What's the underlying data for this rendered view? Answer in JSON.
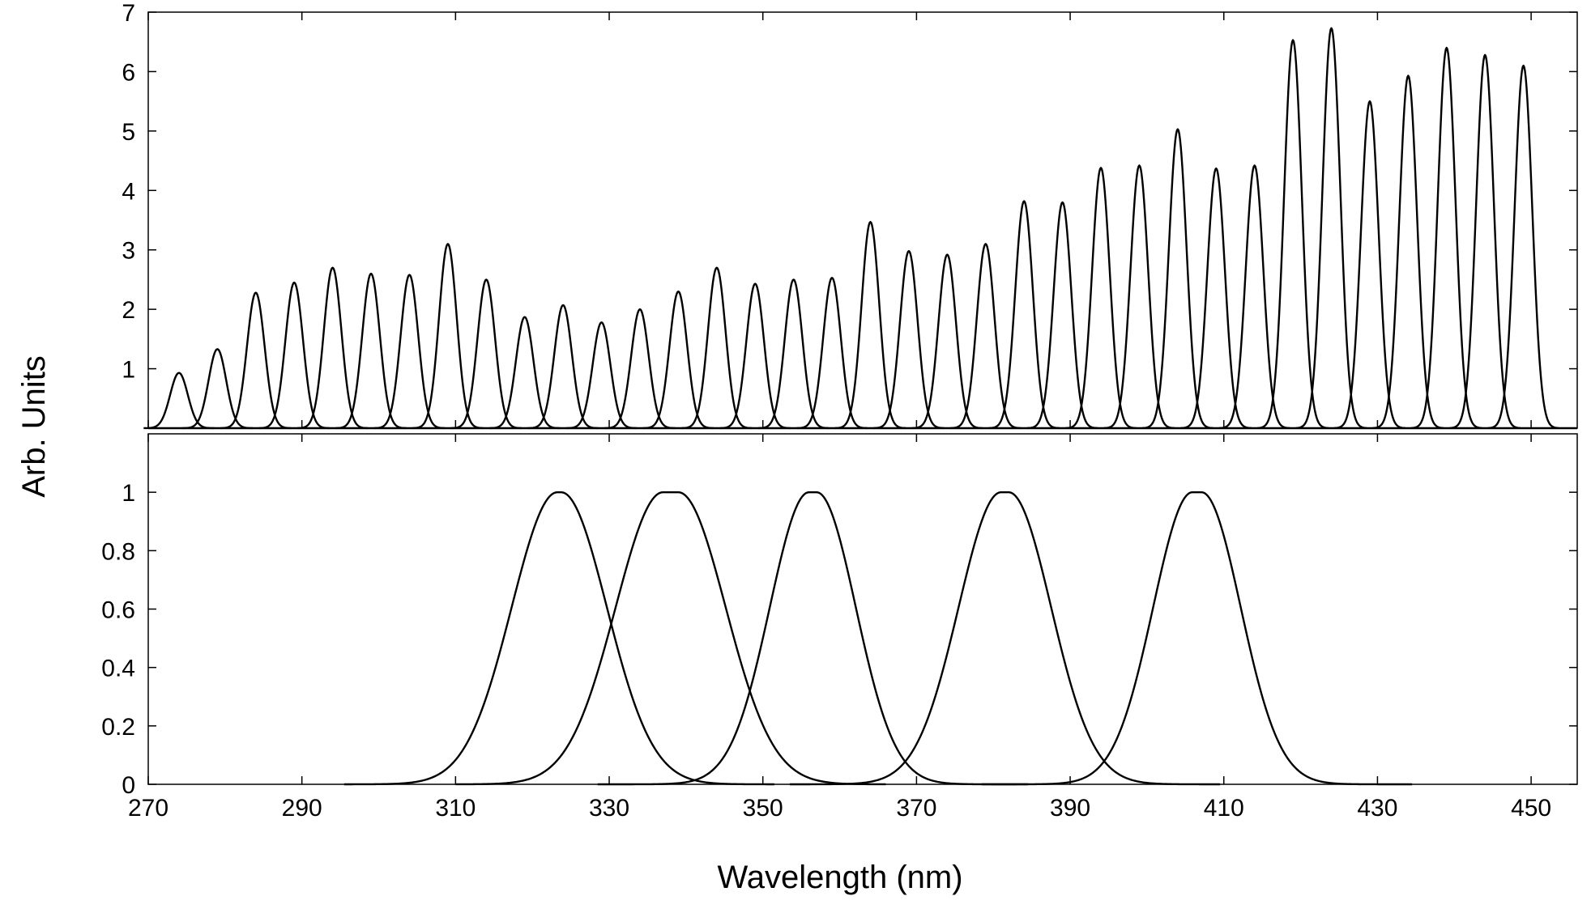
{
  "chart_data": [
    {
      "type": "line",
      "panel": "top",
      "title": "",
      "xlabel": "Wavelength (nm)",
      "ylabel": "Arb. Units",
      "xlim": [
        270,
        456
      ],
      "ylim": [
        0,
        7
      ],
      "xticks": [
        270,
        290,
        310,
        330,
        350,
        370,
        390,
        410,
        430,
        450
      ],
      "yticks": [
        1,
        2,
        3,
        4,
        5,
        6,
        7
      ],
      "ytick_labels": [
        "1",
        "2",
        "3",
        "4",
        "5",
        "6",
        "7"
      ],
      "grid": false,
      "peak_fwhm_nm": 2.7,
      "series": [
        {
          "center": 274,
          "peak": 0.93
        },
        {
          "center": 279,
          "peak": 1.33
        },
        {
          "center": 284,
          "peak": 2.28
        },
        {
          "center": 289,
          "peak": 2.45
        },
        {
          "center": 294,
          "peak": 2.7
        },
        {
          "center": 299,
          "peak": 2.6
        },
        {
          "center": 304,
          "peak": 2.58
        },
        {
          "center": 309,
          "peak": 3.1
        },
        {
          "center": 314,
          "peak": 2.5
        },
        {
          "center": 319,
          "peak": 1.87
        },
        {
          "center": 324,
          "peak": 2.07
        },
        {
          "center": 329,
          "peak": 1.78
        },
        {
          "center": 334,
          "peak": 2.0
        },
        {
          "center": 339,
          "peak": 2.3
        },
        {
          "center": 344,
          "peak": 2.7
        },
        {
          "center": 349,
          "peak": 2.43
        },
        {
          "center": 354,
          "peak": 2.5
        },
        {
          "center": 359,
          "peak": 2.53
        },
        {
          "center": 364,
          "peak": 3.47
        },
        {
          "center": 369,
          "peak": 2.98
        },
        {
          "center": 374,
          "peak": 2.92
        },
        {
          "center": 379,
          "peak": 3.1
        },
        {
          "center": 384,
          "peak": 3.82
        },
        {
          "center": 389,
          "peak": 3.8
        },
        {
          "center": 394,
          "peak": 4.38
        },
        {
          "center": 399,
          "peak": 4.42
        },
        {
          "center": 404,
          "peak": 5.03
        },
        {
          "center": 409,
          "peak": 4.37
        },
        {
          "center": 414,
          "peak": 4.42
        },
        {
          "center": 419,
          "peak": 6.53
        },
        {
          "center": 424,
          "peak": 6.73
        },
        {
          "center": 429,
          "peak": 5.5
        },
        {
          "center": 434,
          "peak": 5.93
        },
        {
          "center": 439,
          "peak": 6.4
        },
        {
          "center": 444,
          "peak": 6.28
        },
        {
          "center": 449,
          "peak": 6.1
        }
      ]
    },
    {
      "type": "line",
      "panel": "bottom",
      "title": "",
      "xlabel": "Wavelength (nm)",
      "ylabel": "Arb. Units",
      "xlim": [
        270,
        456
      ],
      "ylim": [
        0,
        1.2
      ],
      "xticks": [
        270,
        290,
        310,
        330,
        350,
        370,
        390,
        410,
        430,
        450
      ],
      "xtick_labels": [
        "270",
        "290",
        "310",
        "330",
        "350",
        "370",
        "390",
        "410",
        "430",
        "450"
      ],
      "yticks": [
        0,
        0.2,
        0.4,
        0.6,
        0.8,
        1
      ],
      "ytick_labels": [
        "0",
        "0.2",
        "0.4",
        "0.6",
        "0.8",
        "1"
      ],
      "grid": false,
      "series": [
        {
          "center": 323.5,
          "peak": 1.0,
          "fwhm_nm": 14,
          "flat_top_nm": 0.5
        },
        {
          "center": 338,
          "peak": 1.0,
          "fwhm_nm": 14.5,
          "flat_top_nm": 2
        },
        {
          "center": 356.5,
          "peak": 1.0,
          "fwhm_nm": 12,
          "flat_top_nm": 1
        },
        {
          "center": 381.5,
          "peak": 1.0,
          "fwhm_nm": 13,
          "flat_top_nm": 1
        },
        {
          "center": 406.5,
          "peak": 1.0,
          "fwhm_nm": 12,
          "flat_top_nm": 1.2
        }
      ]
    }
  ],
  "labels": {
    "x_axis_title": "Wavelength (nm)",
    "y_axis_title": "Arb. Units"
  }
}
